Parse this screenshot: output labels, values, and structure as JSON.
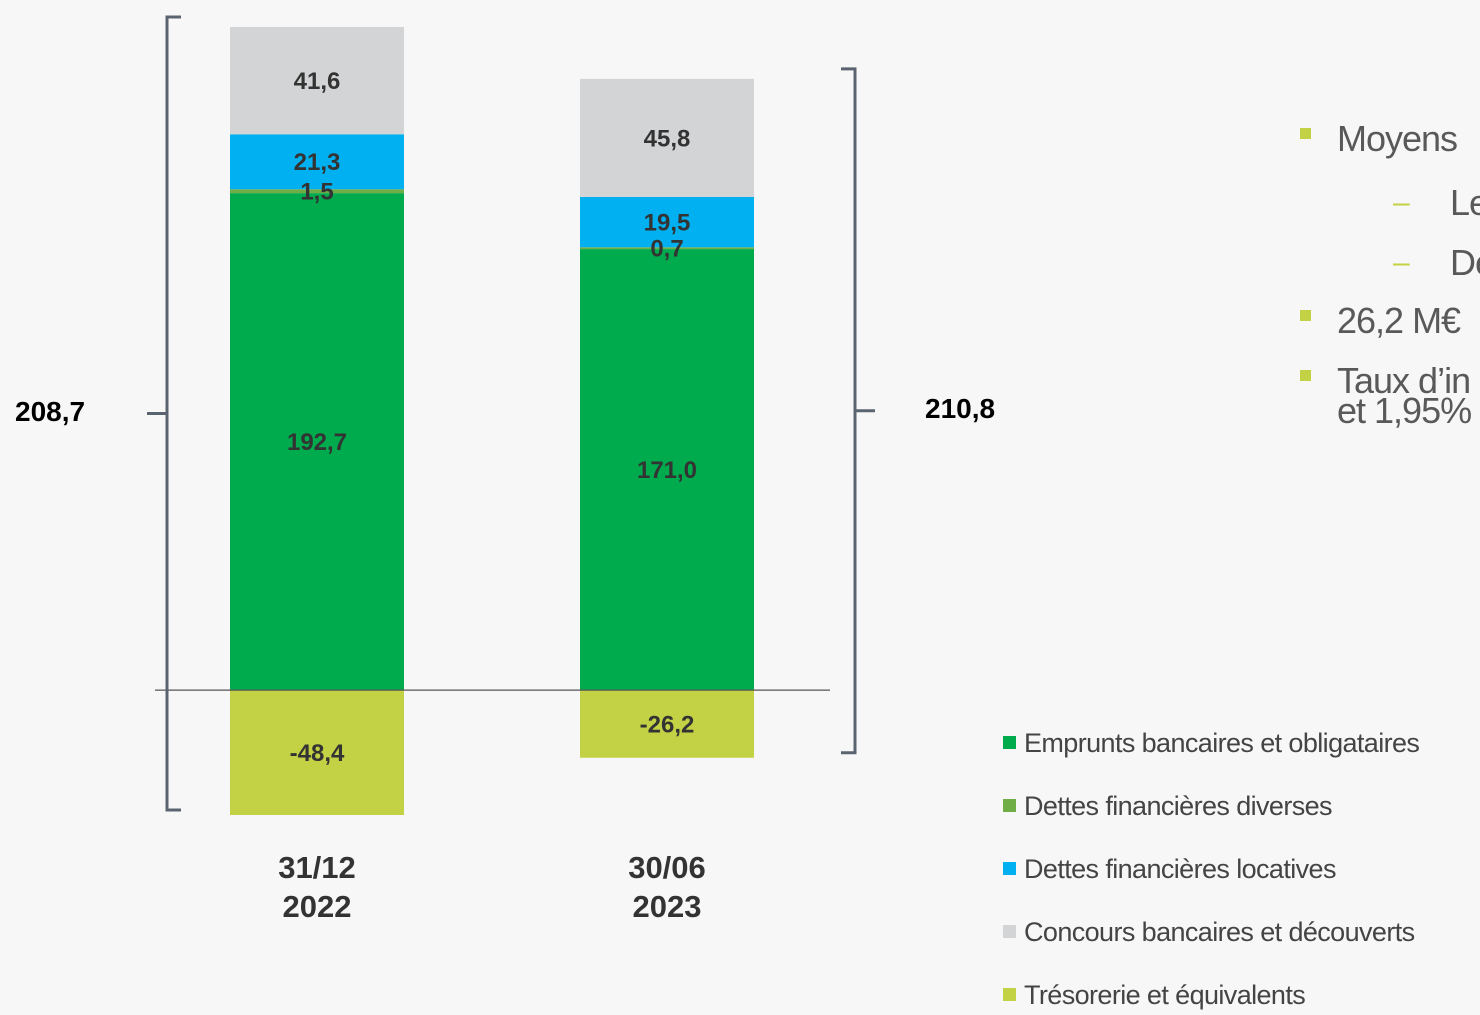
{
  "chart_data": {
    "type": "stacked_bar",
    "categories": [
      "31/12\n2022",
      "30/06\n2023"
    ],
    "series": [
      {
        "name": "Emprunts bancaires et obligataires",
        "color": "#00ab4e",
        "values": [
          192.7,
          171.0
        ],
        "value_labels": [
          "192,7",
          "171,0"
        ]
      },
      {
        "name": "Dettes financières diverses",
        "color": "#70ad47",
        "values": [
          1.5,
          0.7
        ],
        "value_labels": [
          "1,5",
          "0,7"
        ]
      },
      {
        "name": "Dettes financières locatives",
        "color": "#00b0f0",
        "values": [
          21.3,
          19.5
        ],
        "value_labels": [
          "21,3",
          "19,5"
        ]
      },
      {
        "name": "Concours bancaires et découverts",
        "color": "#d3d4d6",
        "values": [
          41.6,
          45.8
        ],
        "value_labels": [
          "41,6",
          "45,8"
        ]
      },
      {
        "name": "Trésorerie et équivalents",
        "color": "#c3d145",
        "values": [
          -48.4,
          -26.2
        ],
        "value_labels": [
          "-48,4",
          "-26,2"
        ]
      }
    ],
    "totals": {
      "values": [
        208.7,
        210.8
      ],
      "value_labels": [
        "208,7",
        "210,8"
      ]
    }
  },
  "bullets": [
    {
      "text": "Moyens",
      "sub": [
        "Le",
        "De"
      ]
    },
    {
      "text": "26,2 M€"
    },
    {
      "text": "Taux d’in\net 1,95%"
    }
  ]
}
